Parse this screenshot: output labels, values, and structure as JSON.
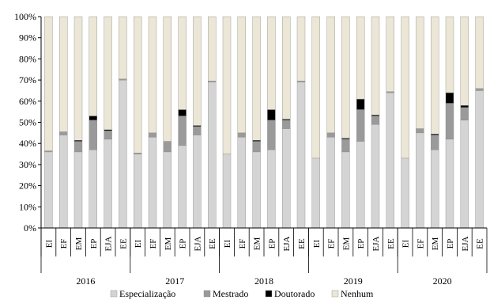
{
  "chart_data": {
    "type": "bar",
    "stacked": true,
    "percent": true,
    "groups": [
      {
        "label": "2016",
        "categories": [
          "EI",
          "EF",
          "EM",
          "EP",
          "EJA",
          "EE"
        ]
      },
      {
        "label": "2017",
        "categories": [
          "EI",
          "EF",
          "EM",
          "EP",
          "EJA",
          "EE"
        ]
      },
      {
        "label": "2018",
        "categories": [
          "EI",
          "EF",
          "EM",
          "EP",
          "EJA",
          "EE"
        ]
      },
      {
        "label": "2019",
        "categories": [
          "EI",
          "EF",
          "EM",
          "EP",
          "EJA",
          "EE"
        ]
      },
      {
        "label": "2020",
        "categories": [
          "EI",
          "EF",
          "EM",
          "EP",
          "EJA",
          "EE"
        ]
      }
    ],
    "series": [
      {
        "name": "Especialização",
        "color": "#d4d4d4",
        "values": [
          36,
          44,
          36,
          37,
          42,
          70,
          35,
          43,
          36,
          39,
          44,
          69,
          35,
          43,
          36,
          37,
          47,
          69,
          33,
          43,
          36,
          41,
          49,
          64,
          33,
          45,
          37,
          42,
          51,
          65
        ]
      },
      {
        "name": "Mestrado",
        "color": "#9a9a9a",
        "values": [
          0.5,
          1.5,
          5,
          14,
          4,
          0.5,
          0.5,
          2,
          5,
          14,
          4,
          0.5,
          0,
          2,
          5,
          14,
          4,
          0.5,
          0,
          2,
          6,
          15,
          4,
          0.5,
          0,
          2,
          7,
          17,
          6,
          1
        ]
      },
      {
        "name": "Doutorado",
        "color": "#000000",
        "values": [
          0,
          0,
          0.5,
          2,
          0.5,
          0,
          0,
          0,
          0,
          3,
          0.5,
          0,
          0,
          0,
          0.5,
          5,
          0.5,
          0,
          0,
          0,
          0.5,
          5,
          0.5,
          0,
          0,
          0,
          0.5,
          5,
          1,
          0
        ]
      },
      {
        "name": "Nenhum",
        "color": "#ebe6d5",
        "values": [
          63.5,
          54.5,
          58.5,
          47,
          53.5,
          29.5,
          64.5,
          55,
          59,
          44,
          51.5,
          30.5,
          65,
          55,
          58.5,
          44,
          48.5,
          30.5,
          67,
          55,
          57.5,
          39,
          46.5,
          35.5,
          67,
          53,
          55.5,
          36,
          42,
          34
        ]
      }
    ],
    "y_ticks": [
      "0%",
      "10%",
      "20%",
      "30%",
      "40%",
      "50%",
      "60%",
      "70%",
      "80%",
      "90%",
      "100%"
    ],
    "ylim": [
      0,
      100
    ],
    "legend": "bottom"
  }
}
